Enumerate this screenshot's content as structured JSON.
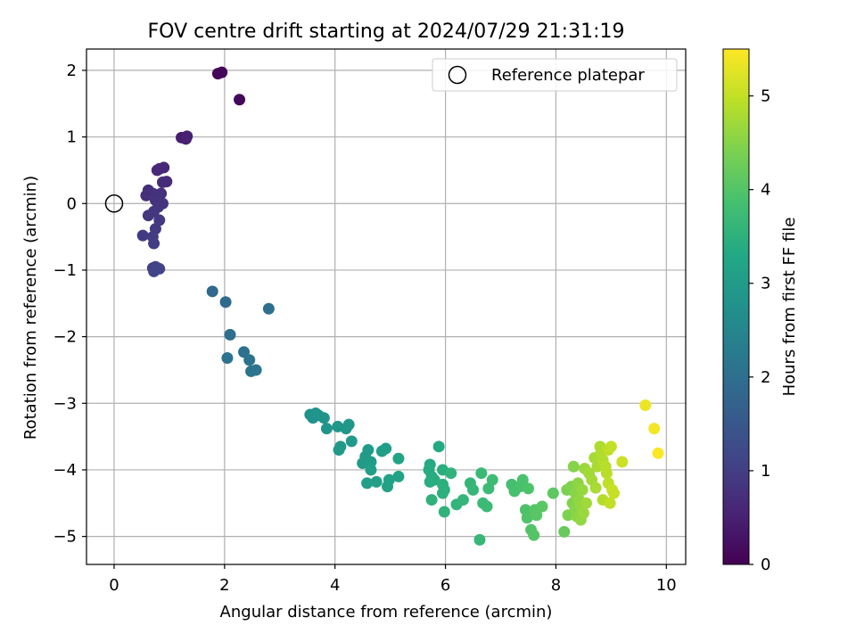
{
  "chart_data": {
    "type": "scatter",
    "title": "FOV centre drift starting at 2024/07/29 21:31:19",
    "xlabel": "Angular distance from reference (arcmin)",
    "ylabel": "Rotation from reference (arcmin)",
    "xlim": [
      -0.5,
      10.35
    ],
    "ylim": [
      -5.42,
      2.32
    ],
    "xticks": [
      "0",
      "2",
      "4",
      "6",
      "8",
      "10"
    ],
    "yticks": [
      "2",
      "1",
      "0",
      "−1",
      "−2",
      "−3",
      "−4",
      "−5"
    ],
    "grid": true,
    "legend": {
      "position": "top-right",
      "label": "Reference platepar"
    },
    "reference_point": {
      "x": 0,
      "y": 0
    },
    "colorbar": {
      "label": "Hours from first FF file",
      "range": [
        0,
        5.5
      ],
      "ticks": [
        "0",
        "1",
        "2",
        "3",
        "4",
        "5"
      ],
      "colormap": "viridis"
    },
    "points": [
      {
        "x": 1.88,
        "y": 1.95,
        "t": 0.05
      },
      {
        "x": 1.95,
        "y": 1.97,
        "t": 0.08
      },
      {
        "x": 2.27,
        "y": 1.56,
        "t": 0.12
      },
      {
        "x": 1.22,
        "y": 0.99,
        "t": 0.45
      },
      {
        "x": 1.3,
        "y": 0.97,
        "t": 0.48
      },
      {
        "x": 1.32,
        "y": 1.01,
        "t": 0.5
      },
      {
        "x": 0.82,
        "y": 0.52,
        "t": 0.6
      },
      {
        "x": 0.9,
        "y": 0.54,
        "t": 0.62
      },
      {
        "x": 0.78,
        "y": 0.5,
        "t": 0.64
      },
      {
        "x": 0.95,
        "y": 0.33,
        "t": 0.68
      },
      {
        "x": 0.88,
        "y": 0.32,
        "t": 0.7
      },
      {
        "x": 0.62,
        "y": 0.2,
        "t": 0.72
      },
      {
        "x": 0.58,
        "y": 0.12,
        "t": 0.74
      },
      {
        "x": 0.7,
        "y": 0.15,
        "t": 0.75
      },
      {
        "x": 0.85,
        "y": 0.15,
        "t": 0.78
      },
      {
        "x": 0.75,
        "y": 0.05,
        "t": 0.8
      },
      {
        "x": 0.88,
        "y": 0.0,
        "t": 0.82
      },
      {
        "x": 0.8,
        "y": -0.05,
        "t": 0.84
      },
      {
        "x": 0.62,
        "y": -0.18,
        "t": 0.86
      },
      {
        "x": 0.72,
        "y": -0.12,
        "t": 0.88
      },
      {
        "x": 0.82,
        "y": -0.25,
        "t": 0.9
      },
      {
        "x": 0.75,
        "y": -0.38,
        "t": 0.92
      },
      {
        "x": 0.52,
        "y": -0.48,
        "t": 0.94
      },
      {
        "x": 0.7,
        "y": -0.5,
        "t": 0.96
      },
      {
        "x": 0.72,
        "y": -0.6,
        "t": 0.98
      },
      {
        "x": 0.7,
        "y": -0.97,
        "t": 1.05
      },
      {
        "x": 0.75,
        "y": -0.95,
        "t": 1.07
      },
      {
        "x": 0.82,
        "y": -0.98,
        "t": 1.1
      },
      {
        "x": 0.72,
        "y": -1.02,
        "t": 1.12
      },
      {
        "x": 1.78,
        "y": -1.32,
        "t": 1.85
      },
      {
        "x": 2.02,
        "y": -1.48,
        "t": 1.9
      },
      {
        "x": 2.8,
        "y": -1.58,
        "t": 2.0
      },
      {
        "x": 2.1,
        "y": -1.97,
        "t": 1.98
      },
      {
        "x": 2.35,
        "y": -2.23,
        "t": 2.05
      },
      {
        "x": 2.05,
        "y": -2.32,
        "t": 2.07
      },
      {
        "x": 2.45,
        "y": -2.35,
        "t": 2.1
      },
      {
        "x": 2.48,
        "y": -2.52,
        "t": 2.12
      },
      {
        "x": 2.57,
        "y": -2.5,
        "t": 2.14
      },
      {
        "x": 3.55,
        "y": -3.17,
        "t": 2.75
      },
      {
        "x": 3.6,
        "y": -3.22,
        "t": 2.77
      },
      {
        "x": 3.7,
        "y": -3.18,
        "t": 2.78
      },
      {
        "x": 3.8,
        "y": -3.22,
        "t": 2.8
      },
      {
        "x": 3.65,
        "y": -3.15,
        "t": 2.82
      },
      {
        "x": 3.85,
        "y": -3.38,
        "t": 2.84
      },
      {
        "x": 4.05,
        "y": -3.35,
        "t": 2.86
      },
      {
        "x": 4.2,
        "y": -3.38,
        "t": 2.88
      },
      {
        "x": 4.25,
        "y": -3.32,
        "t": 2.9
      },
      {
        "x": 4.1,
        "y": -3.65,
        "t": 2.92
      },
      {
        "x": 4.07,
        "y": -3.7,
        "t": 2.94
      },
      {
        "x": 4.3,
        "y": -3.57,
        "t": 2.96
      },
      {
        "x": 4.6,
        "y": -3.7,
        "t": 2.98
      },
      {
        "x": 4.55,
        "y": -3.8,
        "t": 3.0
      },
      {
        "x": 4.5,
        "y": -3.9,
        "t": 3.0
      },
      {
        "x": 4.65,
        "y": -3.88,
        "t": 3.02
      },
      {
        "x": 4.85,
        "y": -3.72,
        "t": 3.04
      },
      {
        "x": 4.92,
        "y": -3.68,
        "t": 3.06
      },
      {
        "x": 4.65,
        "y": -4.0,
        "t": 3.08
      },
      {
        "x": 4.58,
        "y": -4.2,
        "t": 3.1
      },
      {
        "x": 4.75,
        "y": -4.18,
        "t": 3.12
      },
      {
        "x": 4.95,
        "y": -4.25,
        "t": 3.14
      },
      {
        "x": 4.98,
        "y": -4.15,
        "t": 3.16
      },
      {
        "x": 5.15,
        "y": -4.1,
        "t": 3.18
      },
      {
        "x": 5.15,
        "y": -3.83,
        "t": 3.2
      },
      {
        "x": 5.72,
        "y": -3.92,
        "t": 3.32
      },
      {
        "x": 5.88,
        "y": -3.65,
        "t": 3.34
      },
      {
        "x": 5.7,
        "y": -4.0,
        "t": 3.36
      },
      {
        "x": 5.75,
        "y": -4.1,
        "t": 3.38
      },
      {
        "x": 5.72,
        "y": -4.18,
        "t": 3.4
      },
      {
        "x": 5.8,
        "y": -4.15,
        "t": 3.42
      },
      {
        "x": 5.95,
        "y": -4.0,
        "t": 3.44
      },
      {
        "x": 5.95,
        "y": -4.22,
        "t": 3.46
      },
      {
        "x": 5.98,
        "y": -4.3,
        "t": 3.48
      },
      {
        "x": 5.95,
        "y": -4.35,
        "t": 3.5
      },
      {
        "x": 5.75,
        "y": -4.45,
        "t": 3.52
      },
      {
        "x": 5.98,
        "y": -4.63,
        "t": 3.54
      },
      {
        "x": 6.1,
        "y": -4.05,
        "t": 3.56
      },
      {
        "x": 6.2,
        "y": -4.52,
        "t": 3.58
      },
      {
        "x": 6.32,
        "y": -4.45,
        "t": 3.6
      },
      {
        "x": 6.45,
        "y": -4.2,
        "t": 3.62
      },
      {
        "x": 6.5,
        "y": -4.3,
        "t": 3.64
      },
      {
        "x": 6.62,
        "y": -5.05,
        "t": 3.66
      },
      {
        "x": 6.65,
        "y": -4.05,
        "t": 3.68
      },
      {
        "x": 6.68,
        "y": -4.5,
        "t": 3.7
      },
      {
        "x": 6.75,
        "y": -4.55,
        "t": 3.72
      },
      {
        "x": 6.78,
        "y": -4.28,
        "t": 3.74
      },
      {
        "x": 6.85,
        "y": -4.15,
        "t": 3.76
      },
      {
        "x": 7.2,
        "y": -4.22,
        "t": 3.85
      },
      {
        "x": 7.25,
        "y": -4.32,
        "t": 3.87
      },
      {
        "x": 7.35,
        "y": -4.25,
        "t": 3.89
      },
      {
        "x": 7.4,
        "y": -4.15,
        "t": 3.91
      },
      {
        "x": 7.5,
        "y": -4.28,
        "t": 3.93
      },
      {
        "x": 7.45,
        "y": -4.6,
        "t": 3.95
      },
      {
        "x": 7.48,
        "y": -4.72,
        "t": 3.97
      },
      {
        "x": 7.55,
        "y": -4.9,
        "t": 3.99
      },
      {
        "x": 7.6,
        "y": -4.98,
        "t": 4.01
      },
      {
        "x": 7.62,
        "y": -4.6,
        "t": 4.03
      },
      {
        "x": 7.65,
        "y": -4.68,
        "t": 4.05
      },
      {
        "x": 7.75,
        "y": -4.55,
        "t": 4.07
      },
      {
        "x": 7.95,
        "y": -4.35,
        "t": 4.1
      },
      {
        "x": 8.15,
        "y": -4.93,
        "t": 4.2
      },
      {
        "x": 8.2,
        "y": -4.3,
        "t": 4.4
      },
      {
        "x": 8.22,
        "y": -4.68,
        "t": 4.42
      },
      {
        "x": 8.28,
        "y": -4.25,
        "t": 4.44
      },
      {
        "x": 8.3,
        "y": -4.5,
        "t": 4.46
      },
      {
        "x": 8.32,
        "y": -3.95,
        "t": 4.48
      },
      {
        "x": 8.35,
        "y": -4.6,
        "t": 4.5
      },
      {
        "x": 8.35,
        "y": -4.35,
        "t": 4.52
      },
      {
        "x": 8.38,
        "y": -4.7,
        "t": 4.54
      },
      {
        "x": 8.4,
        "y": -4.2,
        "t": 4.56
      },
      {
        "x": 8.42,
        "y": -4.45,
        "t": 4.58
      },
      {
        "x": 8.45,
        "y": -4.75,
        "t": 4.6
      },
      {
        "x": 8.45,
        "y": -4.55,
        "t": 4.62
      },
      {
        "x": 8.48,
        "y": -4.3,
        "t": 4.64
      },
      {
        "x": 8.5,
        "y": -4.65,
        "t": 4.66
      },
      {
        "x": 8.52,
        "y": -3.98,
        "t": 4.68
      },
      {
        "x": 8.55,
        "y": -4.5,
        "t": 4.7
      },
      {
        "x": 8.6,
        "y": -4.05,
        "t": 4.72
      },
      {
        "x": 8.65,
        "y": -4.15,
        "t": 4.74
      },
      {
        "x": 8.7,
        "y": -3.82,
        "t": 4.76
      },
      {
        "x": 8.72,
        "y": -4.27,
        "t": 4.78
      },
      {
        "x": 8.75,
        "y": -3.95,
        "t": 4.8
      },
      {
        "x": 8.8,
        "y": -3.65,
        "t": 4.82
      },
      {
        "x": 8.82,
        "y": -3.72,
        "t": 4.84
      },
      {
        "x": 8.85,
        "y": -3.85,
        "t": 4.86
      },
      {
        "x": 8.85,
        "y": -4.45,
        "t": 4.88
      },
      {
        "x": 8.9,
        "y": -3.95,
        "t": 4.9
      },
      {
        "x": 8.92,
        "y": -4.05,
        "t": 4.92
      },
      {
        "x": 8.95,
        "y": -3.7,
        "t": 4.94
      },
      {
        "x": 8.95,
        "y": -4.2,
        "t": 4.96
      },
      {
        "x": 8.98,
        "y": -4.5,
        "t": 4.98
      },
      {
        "x": 9.0,
        "y": -3.65,
        "t": 5.0
      },
      {
        "x": 9.02,
        "y": -4.3,
        "t": 5.02
      },
      {
        "x": 9.05,
        "y": -4.35,
        "t": 5.04
      },
      {
        "x": 9.2,
        "y": -3.88,
        "t": 5.08
      },
      {
        "x": 9.62,
        "y": -3.03,
        "t": 5.35
      },
      {
        "x": 9.78,
        "y": -3.38,
        "t": 5.42
      },
      {
        "x": 9.85,
        "y": -3.75,
        "t": 5.48
      }
    ]
  }
}
